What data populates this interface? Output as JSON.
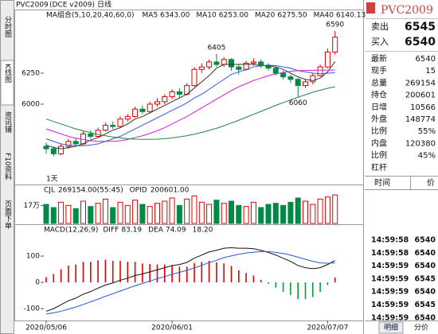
{
  "header": {
    "symbol": "PVC2009",
    "exchange": "(DCE v2009)",
    "period": "日线"
  },
  "side_tabs": [
    "分时图",
    "K线图",
    "资讯铺",
    "F10资料",
    "页面下单"
  ],
  "chart_data": [
    {
      "type": "candlestick",
      "legend_title": "MA组合(5,10,20,40,60,0)",
      "period_label": "1天",
      "ylim": [
        5365,
        6673
      ],
      "yticks": [
        6000,
        6250
      ],
      "up_color": "#e00000",
      "down_color": "#008a45",
      "candles": [
        [
          5660,
          5690,
          5600,
          5640
        ],
        [
          5640,
          5660,
          5580,
          5600
        ],
        [
          5600,
          5680,
          5590,
          5660
        ],
        [
          5660,
          5720,
          5640,
          5700
        ],
        [
          5700,
          5730,
          5660,
          5680
        ],
        [
          5680,
          5780,
          5670,
          5760
        ],
        [
          5760,
          5790,
          5720,
          5740
        ],
        [
          5740,
          5810,
          5730,
          5790
        ],
        [
          5790,
          5850,
          5780,
          5830
        ],
        [
          5830,
          5860,
          5800,
          5820
        ],
        [
          5820,
          5900,
          5810,
          5880
        ],
        [
          5880,
          5920,
          5860,
          5900
        ],
        [
          5900,
          5980,
          5890,
          5960
        ],
        [
          5960,
          5990,
          5920,
          5940
        ],
        [
          5940,
          6020,
          5930,
          6000
        ],
        [
          6000,
          6050,
          5980,
          6020
        ],
        [
          6020,
          6080,
          6000,
          6060
        ],
        [
          6060,
          6120,
          6040,
          6100
        ],
        [
          6100,
          6130,
          6050,
          6080
        ],
        [
          6080,
          6170,
          6070,
          6150
        ],
        [
          6150,
          6300,
          6140,
          6280
        ],
        [
          6280,
          6330,
          6250,
          6300
        ],
        [
          6300,
          6360,
          6280,
          6340
        ],
        [
          6340,
          6405,
          6300,
          6320
        ],
        [
          6320,
          6380,
          6300,
          6360
        ],
        [
          6360,
          6370,
          6270,
          6300
        ],
        [
          6300,
          6320,
          6240,
          6280
        ],
        [
          6280,
          6350,
          6270,
          6330
        ],
        [
          6330,
          6370,
          6310,
          6340
        ],
        [
          6340,
          6360,
          6290,
          6310
        ],
        [
          6310,
          6330,
          6270,
          6290
        ],
        [
          6290,
          6300,
          6230,
          6250
        ],
        [
          6250,
          6270,
          6200,
          6220
        ],
        [
          6220,
          6240,
          6170,
          6200
        ],
        [
          6200,
          6210,
          6060,
          6150
        ],
        [
          6150,
          6200,
          6130,
          6180
        ],
        [
          6180,
          6250,
          6160,
          6230
        ],
        [
          6230,
          6320,
          6220,
          6300
        ],
        [
          6300,
          6450,
          6290,
          6420
        ],
        [
          6420,
          6590,
          6400,
          6540
        ]
      ],
      "series": [
        {
          "name": "MA5",
          "value_label": "6343.00",
          "color": "#333333",
          "values": [
            5670,
            5650,
            5640,
            5650,
            5660,
            5680,
            5710,
            5730,
            5760,
            5790,
            5810,
            5840,
            5880,
            5900,
            5930,
            5960,
            5990,
            6020,
            6050,
            6080,
            6130,
            6180,
            6230,
            6290,
            6320,
            6320,
            6320,
            6320,
            6320,
            6310,
            6310,
            6300,
            6280,
            6250,
            6220,
            6200,
            6190,
            6210,
            6260,
            6343
          ]
        },
        {
          "name": "MA10",
          "value_label": "6253.00",
          "color": "#2a5bd7",
          "values": [
            5720,
            5700,
            5680,
            5670,
            5665,
            5665,
            5670,
            5680,
            5700,
            5720,
            5740,
            5770,
            5800,
            5830,
            5860,
            5890,
            5920,
            5950,
            5980,
            6010,
            6050,
            6080,
            6120,
            6160,
            6200,
            6240,
            6260,
            6280,
            6300,
            6310,
            6315,
            6310,
            6300,
            6290,
            6270,
            6260,
            6250,
            6245,
            6250,
            6253
          ]
        },
        {
          "name": "MA20",
          "value_label": "6275.50",
          "color": "#d020d0",
          "values": [
            5800,
            5780,
            5760,
            5740,
            5725,
            5715,
            5705,
            5700,
            5700,
            5700,
            5705,
            5715,
            5730,
            5745,
            5765,
            5785,
            5810,
            5840,
            5870,
            5900,
            5935,
            5970,
            6005,
            6040,
            6075,
            6110,
            6140,
            6165,
            6190,
            6210,
            6230,
            6245,
            6255,
            6265,
            6270,
            6272,
            6273,
            6274,
            6275,
            6275.5
          ]
        },
        {
          "name": "MA40",
          "value_label": "6140.13",
          "color": "#1f8a3a",
          "values": [
            5880,
            5860,
            5840,
            5820,
            5800,
            5785,
            5770,
            5755,
            5745,
            5735,
            5728,
            5722,
            5718,
            5716,
            5716,
            5718,
            5722,
            5728,
            5736,
            5746,
            5758,
            5772,
            5788,
            5806,
            5826,
            5848,
            5870,
            5894,
            5918,
            5942,
            5966,
            5990,
            6012,
            6034,
            6056,
            6076,
            6096,
            6112,
            6128,
            6140.13
          ]
        }
      ]
    },
    {
      "type": "bar",
      "title": "CJL",
      "summary": "269154.00(55:45)",
      "oi_title": "OPID",
      "oi_summary": "200601.00",
      "ylim": [
        0,
        300000
      ],
      "yticks": [
        {
          "value": 170000,
          "label": "17万"
        }
      ],
      "values": [
        180000,
        150000,
        200000,
        170000,
        140000,
        210000,
        160000,
        190000,
        230000,
        150000,
        200000,
        170000,
        220000,
        180000,
        160000,
        190000,
        210000,
        240000,
        170000,
        230000,
        260000,
        200000,
        180000,
        220000,
        190000,
        210000,
        170000,
        160000,
        200000,
        150000,
        180000,
        190000,
        170000,
        200000,
        240000,
        210000,
        180000,
        230000,
        250000,
        269154
      ]
    },
    {
      "type": "macd",
      "title": "MACD(12,26,9)",
      "ylim": [
        -142,
        197
      ],
      "yticks": [
        -100,
        0,
        100
      ],
      "categories": [
        "2020/05/06",
        null,
        null,
        null,
        null,
        null,
        null,
        null,
        null,
        null,
        null,
        null,
        null,
        null,
        null,
        null,
        null,
        "2020/06/01",
        null,
        null,
        null,
        null,
        null,
        null,
        null,
        null,
        null,
        null,
        null,
        null,
        null,
        null,
        null,
        null,
        null,
        null,
        null,
        null,
        "2020/07/07",
        null
      ],
      "series": [
        {
          "name": "DIFF",
          "value_label": "83.19",
          "color": "#111111",
          "values": [
            -110,
            -100,
            -85,
            -70,
            -60,
            -45,
            -35,
            -22,
            -10,
            -2,
            8,
            16,
            26,
            32,
            40,
            48,
            56,
            64,
            68,
            76,
            92,
            104,
            116,
            122,
            130,
            132,
            130,
            130,
            128,
            122,
            114,
            104,
            92,
            80,
            64,
            56,
            52,
            56,
            68,
            83.19
          ]
        },
        {
          "name": "DEA",
          "value_label": "74.09",
          "color": "#1e5bd8",
          "values": [
            -120,
            -116,
            -110,
            -102,
            -94,
            -84,
            -74,
            -64,
            -53,
            -43,
            -33,
            -23,
            -13,
            -4,
            5,
            14,
            22,
            31,
            38,
            46,
            55,
            65,
            75,
            84,
            94,
            101,
            107,
            112,
            115,
            117,
            117,
            114,
            110,
            104,
            96,
            88,
            80,
            74,
            73,
            74.09
          ]
        }
      ],
      "histogram": {
        "value_label": "18.20",
        "up_color": "#e00000",
        "down_color": "#00a040",
        "values": [
          20,
          32,
          50,
          64,
          68,
          78,
          78,
          84,
          86,
          82,
          82,
          78,
          78,
          72,
          70,
          68,
          68,
          66,
          60,
          60,
          74,
          78,
          82,
          76,
          72,
          62,
          46,
          36,
          26,
          10,
          -6,
          -20,
          -36,
          -48,
          -64,
          -64,
          -56,
          -36,
          -10,
          18.2
        ]
      }
    }
  ],
  "quote_panel": {
    "title": "PVC2009",
    "bid_ask": [
      {
        "label": "卖出",
        "value": 6545
      },
      {
        "label": "买入",
        "value": 6540
      }
    ],
    "stats": [
      {
        "label": "最新",
        "value": 6540,
        "color": "#e00000"
      },
      {
        "label": "现手",
        "value": 15,
        "color": "#1a4fd0"
      },
      {
        "label": "总量",
        "value": 269154,
        "color": "#111111"
      },
      {
        "label": "持仓",
        "value": 200601,
        "color": "#111111"
      },
      {
        "label": "日增",
        "value": 10566,
        "color": "#111111"
      },
      {
        "label": "外盘",
        "value": 148774,
        "color": "#e00000"
      },
      {
        "label": "比例",
        "value": "55%",
        "color": "#e00000"
      },
      {
        "label": "内盘",
        "value": 120380,
        "color": "#008a45"
      },
      {
        "label": "比例",
        "value": "45%",
        "color": "#008a45"
      },
      {
        "label": "杠杆"
      }
    ],
    "trades_header": [
      "时间",
      "价"
    ],
    "trades": [
      {
        "time": "14:59:58",
        "price": 6540,
        "color": "#e00000"
      },
      {
        "time": "14:59:58",
        "price": 6540,
        "color": "#008a45"
      },
      {
        "time": "14:59:59",
        "price": 6540,
        "color": "#e00000"
      },
      {
        "time": "14:59:59",
        "price": 6545,
        "color": "#e00000"
      },
      {
        "time": "14:59:59",
        "price": 6540,
        "color": "#008a45"
      },
      {
        "time": "14:59:59",
        "price": 6545,
        "color": "#e00000"
      },
      {
        "time": "14:59:59",
        "price": 6540,
        "color": "#008a45"
      }
    ],
    "tabs": [
      "明细",
      "分价"
    ]
  }
}
